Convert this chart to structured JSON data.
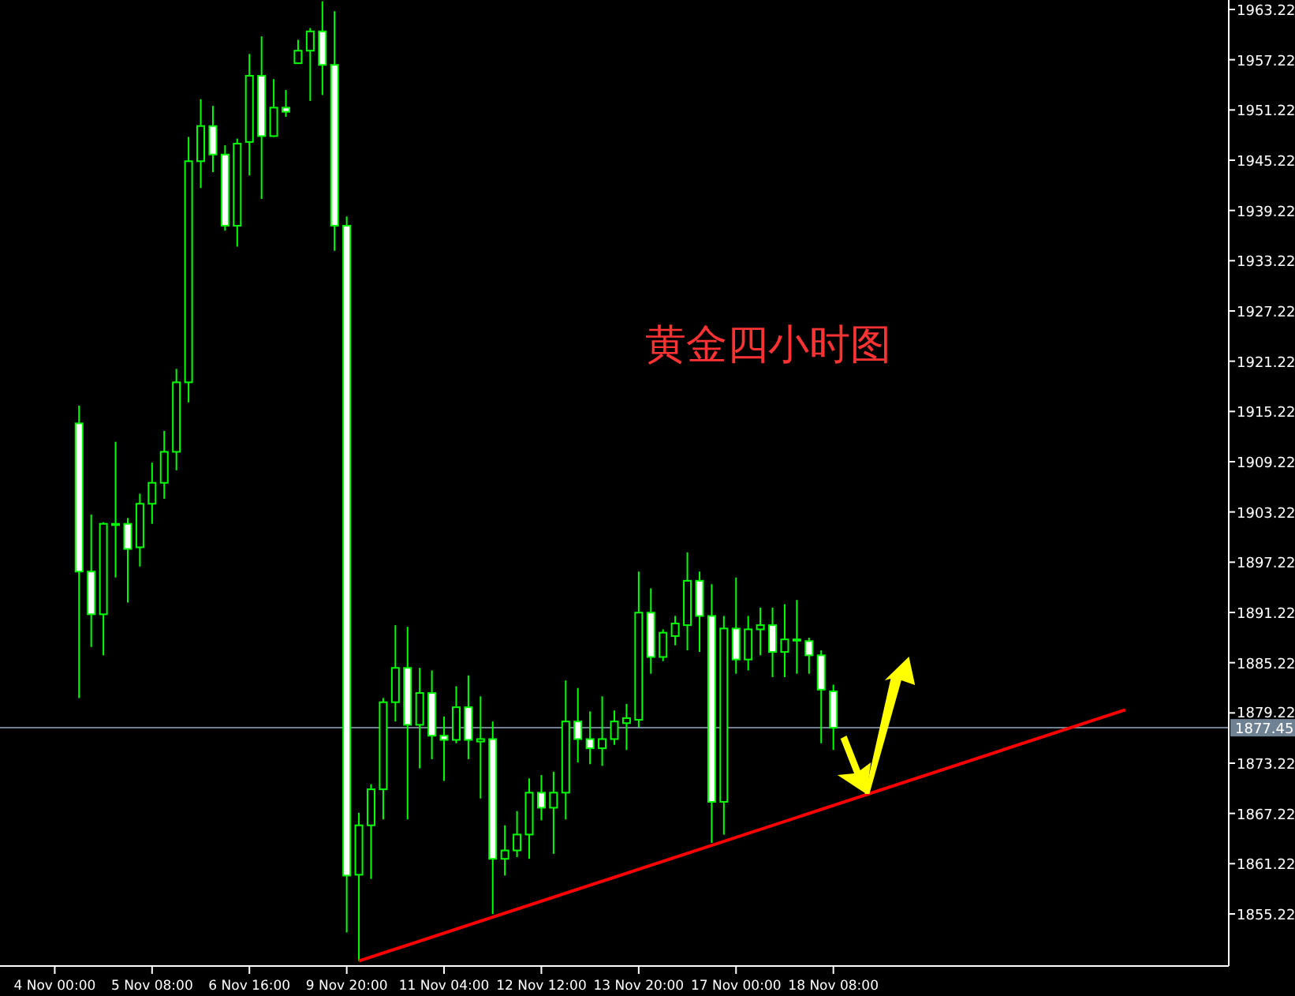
{
  "chart_data": {
    "type": "candlestick",
    "annotations": [
      "黄金四小时图"
    ],
    "categories": [
      null,
      null,
      null,
      null,
      "4 Nov 00:00",
      null,
      null,
      null,
      null,
      null,
      null,
      null,
      "5 Nov 08:00",
      null,
      null,
      null,
      null,
      null,
      null,
      null,
      "6 Nov 16:00",
      null,
      null,
      null,
      null,
      null,
      null,
      null,
      "9 Nov 20:00",
      null,
      null,
      null,
      null,
      null,
      null,
      null,
      "11 Nov 04:00",
      null,
      null,
      null,
      null,
      null,
      null,
      null,
      "12 Nov 12:00",
      null,
      null,
      null,
      null,
      null,
      null,
      null,
      "13 Nov 20:00",
      null,
      null,
      null,
      null,
      null,
      null,
      null,
      "17 Nov 00:00",
      null,
      null,
      null,
      null,
      null,
      null,
      null,
      "18 Nov 08:00",
      null,
      null,
      null,
      null,
      null,
      null,
      null,
      null,
      null,
      null,
      null,
      null,
      null,
      null,
      null,
      null,
      null,
      null,
      null,
      null,
      null,
      null,
      null,
      null,
      null,
      null,
      null,
      null,
      null,
      null,
      null,
      null
    ],
    "ohlc": [
      null,
      null,
      null,
      null,
      null,
      null,
      [
        1913.8,
        1915.9,
        1881.0,
        1896.1
      ],
      [
        1896.1,
        1902.9,
        1887.1,
        1891.0
      ],
      [
        1891.0,
        1902.0,
        1886.1,
        1901.8
      ],
      [
        1901.8,
        1911.6,
        1895.4,
        1901.8
      ],
      [
        1901.8,
        1902.5,
        1892.4,
        1898.8
      ],
      [
        1899.0,
        1905.4,
        1896.7,
        1904.2
      ],
      [
        1904.2,
        1909.1,
        1901.8,
        1906.7
      ],
      [
        1906.7,
        1912.9,
        1904.8,
        1910.4
      ],
      [
        1910.4,
        1920.3,
        1908.2,
        1918.7
      ],
      [
        1918.7,
        1948.0,
        1916.3,
        1945.1
      ],
      [
        1945.1,
        1952.5,
        1941.9,
        1949.3
      ],
      [
        1949.3,
        1951.7,
        1943.8,
        1945.9
      ],
      [
        1945.9,
        1947.0,
        1936.8,
        1937.4
      ],
      [
        1937.4,
        1947.8,
        1934.9,
        1947.2
      ],
      [
        1947.4,
        1957.9,
        1943.4,
        1955.3
      ],
      [
        1955.3,
        1960.0,
        1940.6,
        1948.1
      ],
      [
        1948.1,
        1954.9,
        1948.0,
        1951.5
      ],
      [
        1951.5,
        1953.6,
        1950.4,
        1951.0
      ],
      [
        1956.8,
        1959.6,
        1956.8,
        1958.3
      ],
      [
        1958.3,
        1961.0,
        1952.3,
        1960.6
      ],
      [
        1960.6,
        1964.2,
        1953.0,
        1956.6
      ],
      [
        1956.6,
        1963.0,
        1934.4,
        1937.4
      ],
      [
        1937.4,
        1938.5,
        1853.0,
        1859.8
      ],
      [
        1859.9,
        1867.3,
        1849.6,
        1865.8
      ],
      [
        1865.8,
        1870.7,
        1859.4,
        1870.1
      ],
      [
        1870.1,
        1881.0,
        1866.5,
        1880.5
      ],
      [
        1880.5,
        1889.7,
        1878.2,
        1884.6
      ],
      [
        1884.6,
        1889.5,
        1866.5,
        1877.8
      ],
      [
        1877.8,
        1884.6,
        1872.6,
        1881.6
      ],
      [
        1881.6,
        1884.3,
        1873.7,
        1876.5
      ],
      [
        1876.5,
        1878.8,
        1871.1,
        1876.0
      ],
      [
        1876.0,
        1882.4,
        1875.6,
        1879.9
      ],
      [
        1879.9,
        1883.7,
        1873.7,
        1876.0
      ],
      [
        1875.8,
        1881.2,
        1869.0,
        1876.1
      ],
      [
        1876.1,
        1878.2,
        1855.2,
        1861.8
      ],
      [
        1861.8,
        1865.8,
        1859.8,
        1862.8
      ],
      [
        1862.8,
        1867.5,
        1862.0,
        1864.7
      ],
      [
        1864.7,
        1871.4,
        1861.8,
        1869.7
      ],
      [
        1869.7,
        1871.8,
        1866.4,
        1867.9
      ],
      [
        1867.9,
        1872.2,
        1862.4,
        1869.7
      ],
      [
        1869.7,
        1883.1,
        1866.5,
        1878.2
      ],
      [
        1878.2,
        1882.2,
        1873.3,
        1876.1
      ],
      [
        1876.1,
        1879.4,
        1873.1,
        1875.0
      ],
      [
        1875.0,
        1881.2,
        1872.9,
        1876.1
      ],
      [
        1876.1,
        1879.5,
        1875.4,
        1878.2
      ],
      [
        1878.0,
        1880.3,
        1874.8,
        1878.6
      ],
      [
        1878.4,
        1896.1,
        1877.5,
        1891.2
      ],
      [
        1891.2,
        1894.1,
        1883.9,
        1885.9
      ],
      [
        1885.9,
        1889.2,
        1885.4,
        1888.8
      ],
      [
        1888.4,
        1890.8,
        1887.3,
        1889.9
      ],
      [
        1889.7,
        1898.4,
        1886.7,
        1895.0
      ],
      [
        1895.0,
        1896.1,
        1886.5,
        1890.8
      ],
      [
        1890.8,
        1894.6,
        1863.7,
        1868.6
      ],
      [
        1868.6,
        1890.8,
        1864.7,
        1889.3
      ],
      [
        1889.3,
        1895.4,
        1883.9,
        1885.6
      ],
      [
        1885.6,
        1890.8,
        1884.3,
        1889.2
      ],
      [
        1889.2,
        1891.8,
        1886.1,
        1889.7
      ],
      [
        1889.7,
        1891.8,
        1883.5,
        1886.5
      ],
      [
        1886.5,
        1892.2,
        1883.5,
        1888.0
      ],
      [
        1888.0,
        1892.7,
        1883.9,
        1888.0
      ],
      [
        1887.8,
        1888.2,
        1883.9,
        1886.1
      ],
      [
        1886.1,
        1886.7,
        1875.6,
        1882.0
      ],
      [
        1881.8,
        1882.6,
        1874.8,
        1877.45
      ],
      null,
      null,
      null,
      null,
      null,
      null,
      null,
      null,
      null,
      null,
      null,
      null,
      null,
      null,
      null,
      null,
      null,
      null,
      null,
      null,
      null,
      null,
      null,
      null,
      null,
      null,
      null,
      null,
      null,
      null,
      null,
      null
    ],
    "color": "#00ff00",
    "series": [
      {
        "type": "line",
        "color": "#ff0000",
        "values": [
          null,
          null,
          null,
          null,
          null,
          null,
          null,
          null,
          null,
          null,
          null,
          null,
          null,
          null,
          null,
          null,
          null,
          null,
          null,
          null,
          null,
          null,
          null,
          null,
          null,
          null,
          null,
          null,
          null,
          1849.6,
          null,
          null,
          null,
          null,
          null,
          null,
          null,
          null,
          null,
          null,
          null,
          null,
          null,
          null,
          null,
          null,
          null,
          null,
          null,
          null,
          null,
          null,
          null,
          null,
          null,
          null,
          null,
          null,
          null,
          null,
          null,
          null,
          null,
          null,
          null,
          null,
          null,
          null,
          null,
          null,
          null,
          null,
          null,
          null,
          null,
          null,
          null,
          null,
          null,
          null,
          null,
          null,
          null,
          null,
          null,
          null,
          null,
          null,
          null,
          null,
          null,
          null,
          1879.6,
          null,
          null,
          null,
          null,
          null,
          null,
          null,
          null
        ]
      }
    ],
    "ref_lines": [
      {
        "axis": "y",
        "value": 1877.45,
        "label": "1877.45",
        "color": "#6f8294"
      }
    ],
    "ylim": [
      1849.0,
      1964.35
    ],
    "yticks": [
      1855.22,
      1861.22,
      1867.22,
      1873.22,
      1879.22,
      1885.22,
      1891.22,
      1897.22,
      1903.22,
      1909.22,
      1915.22,
      1921.22,
      1927.22,
      1933.22,
      1939.22,
      1945.22,
      1951.22,
      1957.22,
      1963.22
    ]
  }
}
